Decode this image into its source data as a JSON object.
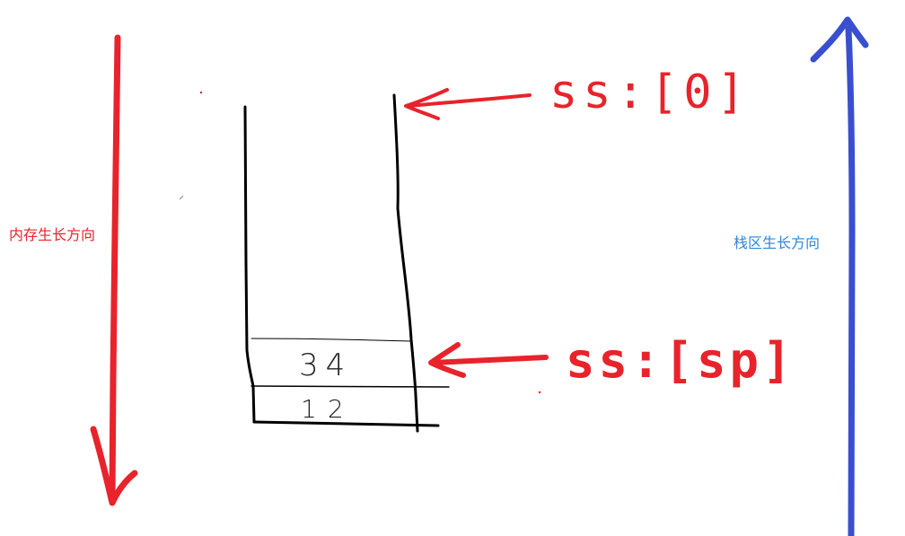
{
  "labels": {
    "memory_growth": "内存生长方向",
    "stack_growth": "栈区生长方向"
  },
  "pointers": {
    "top": "ss:[0]",
    "current": "ss:[sp]"
  },
  "stack_cells": {
    "upper": "34",
    "lower": "12"
  },
  "colors": {
    "red": "#e8232b",
    "blue": "#3a4ed0",
    "label_blue": "#2f86d8",
    "black": "#000000"
  }
}
